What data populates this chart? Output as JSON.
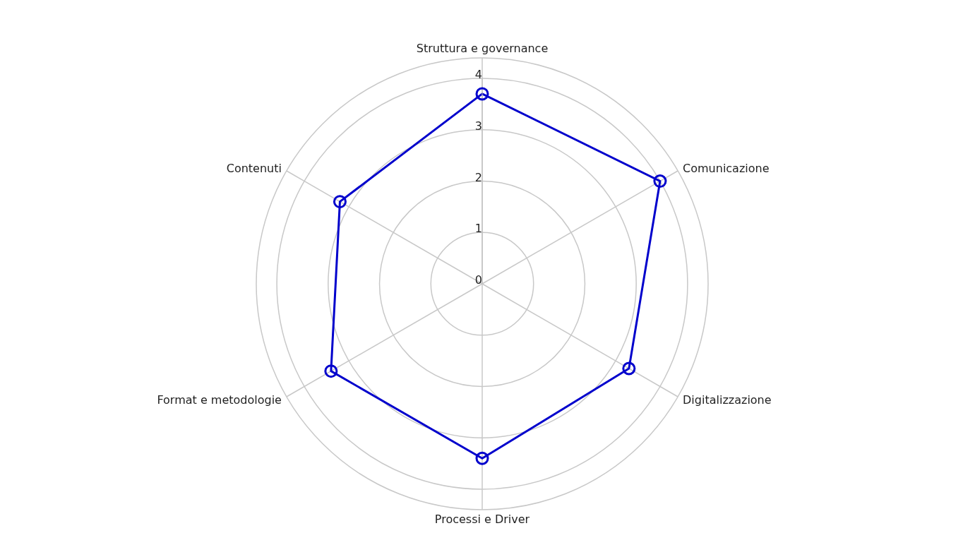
{
  "chart_data": {
    "type": "radar",
    "categories": [
      "Struttura e governance",
      "Comunicazione",
      "Digitalizzazione",
      "Processi e Driver",
      "Format e metodologie",
      "Contenuti"
    ],
    "series": [
      {
        "color": "#0000cc",
        "values": [
          3.7,
          4.0,
          3.3,
          3.4,
          3.4,
          3.2
        ]
      }
    ],
    "ylim": [
      0,
      4.4
    ],
    "yticks": [
      0,
      1,
      2,
      3,
      4
    ],
    "grid": true,
    "marker": "circle",
    "line_style": "solid",
    "legend": false
  }
}
